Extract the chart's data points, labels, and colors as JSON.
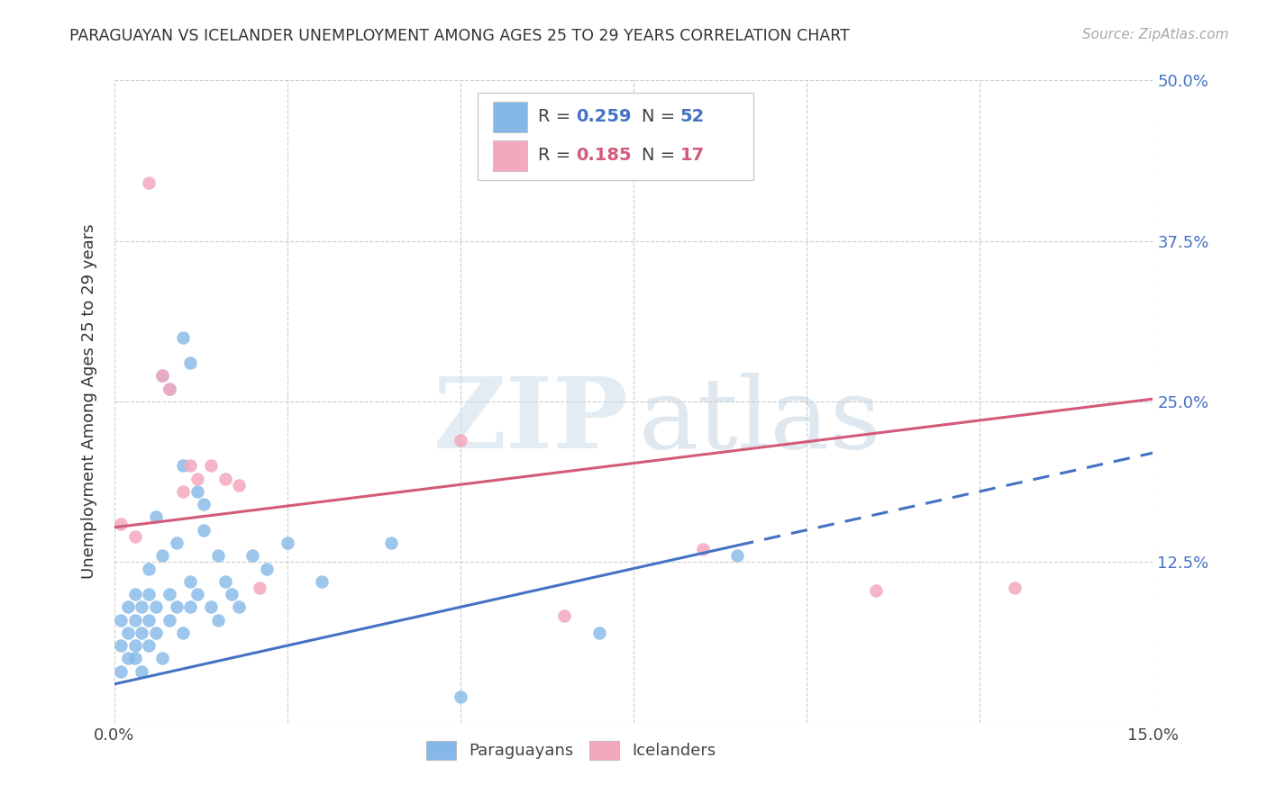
{
  "title": "PARAGUAYAN VS ICELANDER UNEMPLOYMENT AMONG AGES 25 TO 29 YEARS CORRELATION CHART",
  "source": "Source: ZipAtlas.com",
  "ylabel": "Unemployment Among Ages 25 to 29 years",
  "xlim": [
    0.0,
    0.15
  ],
  "ylim": [
    0.0,
    0.5
  ],
  "xticks": [
    0.0,
    0.025,
    0.05,
    0.075,
    0.1,
    0.125,
    0.15
  ],
  "yticks": [
    0.0,
    0.125,
    0.25,
    0.375,
    0.5
  ],
  "paraguayan_x": [
    0.001,
    0.001,
    0.001,
    0.002,
    0.002,
    0.002,
    0.003,
    0.003,
    0.003,
    0.003,
    0.004,
    0.004,
    0.004,
    0.005,
    0.005,
    0.005,
    0.005,
    0.006,
    0.006,
    0.006,
    0.007,
    0.007,
    0.007,
    0.008,
    0.008,
    0.008,
    0.009,
    0.009,
    0.01,
    0.01,
    0.01,
    0.011,
    0.011,
    0.011,
    0.012,
    0.012,
    0.013,
    0.013,
    0.014,
    0.015,
    0.015,
    0.016,
    0.017,
    0.018,
    0.02,
    0.022,
    0.025,
    0.03,
    0.04,
    0.05,
    0.07,
    0.09
  ],
  "paraguayan_y": [
    0.04,
    0.06,
    0.08,
    0.05,
    0.07,
    0.09,
    0.05,
    0.06,
    0.08,
    0.1,
    0.04,
    0.07,
    0.09,
    0.06,
    0.08,
    0.1,
    0.12,
    0.07,
    0.09,
    0.16,
    0.05,
    0.13,
    0.27,
    0.08,
    0.1,
    0.26,
    0.09,
    0.14,
    0.07,
    0.2,
    0.3,
    0.09,
    0.28,
    0.11,
    0.1,
    0.18,
    0.15,
    0.17,
    0.09,
    0.08,
    0.13,
    0.11,
    0.1,
    0.09,
    0.13,
    0.12,
    0.14,
    0.11,
    0.14,
    0.02,
    0.07,
    0.13
  ],
  "icelander_x": [
    0.001,
    0.003,
    0.005,
    0.007,
    0.008,
    0.01,
    0.011,
    0.012,
    0.014,
    0.016,
    0.018,
    0.021,
    0.05,
    0.065,
    0.085,
    0.11,
    0.13
  ],
  "icelander_y": [
    0.155,
    0.145,
    0.42,
    0.27,
    0.26,
    0.18,
    0.2,
    0.19,
    0.2,
    0.19,
    0.185,
    0.105,
    0.22,
    0.083,
    0.135,
    0.103,
    0.105
  ],
  "paraguayan_R": 0.259,
  "paraguayan_N": 52,
  "icelander_R": 0.185,
  "icelander_N": 17,
  "paraguayan_color": "#85b8e8",
  "icelander_color": "#f4a8bc",
  "paraguayan_line_color": "#4472C4",
  "icelander_line_color": "#D45A7A",
  "background_color": "#ffffff",
  "grid_color": "#cccccc",
  "par_line_y0": 0.03,
  "par_line_y1": 0.21,
  "ice_line_y0": 0.152,
  "ice_line_y1": 0.252
}
